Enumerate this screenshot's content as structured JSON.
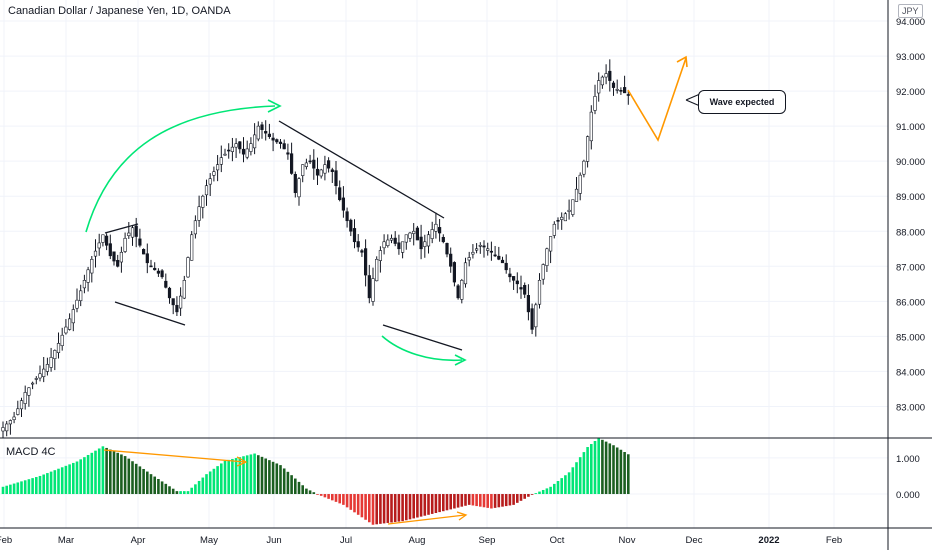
{
  "chart_data": [
    {
      "type": "candlestick",
      "title": "Canadian Dollar / Japanese Yen, 1D, OANDA",
      "currency": "JPY",
      "ylim": [
        82.1,
        94.6
      ],
      "y_ticks": [
        "94.000",
        "93.000",
        "92.000",
        "91.000",
        "90.000",
        "89.000",
        "88.000",
        "87.000",
        "86.000",
        "85.000",
        "84.000",
        "83.000"
      ],
      "x_ticks": [
        "Feb",
        "Mar",
        "Apr",
        "May",
        "Jun",
        "Jul",
        "Aug",
        "Sep",
        "Oct",
        "Nov",
        "Dec",
        "2022",
        "Feb"
      ],
      "anchors": [
        [
          0,
          82.4
        ],
        [
          3,
          82.7
        ],
        [
          6,
          83.4
        ],
        [
          9,
          83.8
        ],
        [
          12,
          84.2
        ],
        [
          15,
          84.8
        ],
        [
          18,
          85.5
        ],
        [
          21,
          86.3
        ],
        [
          24,
          87.2
        ],
        [
          27,
          87.9
        ],
        [
          29,
          87.3
        ],
        [
          31,
          87.0
        ],
        [
          33,
          87.8
        ],
        [
          35,
          88.1
        ],
        [
          37,
          87.6
        ],
        [
          39,
          87.1
        ],
        [
          41,
          86.9
        ],
        [
          43,
          86.7
        ],
        [
          45,
          86.1
        ],
        [
          47,
          85.7
        ],
        [
          49,
          86.6
        ],
        [
          51,
          87.9
        ],
        [
          53,
          88.7
        ],
        [
          55,
          89.3
        ],
        [
          57,
          89.7
        ],
        [
          59,
          90.1
        ],
        [
          61,
          90.3
        ],
        [
          63,
          90.5
        ],
        [
          65,
          90.2
        ],
        [
          67,
          90.5
        ],
        [
          69,
          91.0
        ],
        [
          71,
          90.8
        ],
        [
          73,
          90.6
        ],
        [
          75,
          90.5
        ],
        [
          77,
          90.2
        ],
        [
          79,
          89.1
        ],
        [
          81,
          89.9
        ],
        [
          83,
          90.0
        ],
        [
          85,
          89.6
        ],
        [
          87,
          89.9
        ],
        [
          89,
          89.7
        ],
        [
          91,
          88.9
        ],
        [
          93,
          88.3
        ],
        [
          95,
          87.7
        ],
        [
          97,
          87.4
        ],
        [
          99,
          86.1
        ],
        [
          101,
          87.2
        ],
        [
          103,
          87.7
        ],
        [
          105,
          87.8
        ],
        [
          107,
          87.5
        ],
        [
          109,
          87.9
        ],
        [
          111,
          88.0
        ],
        [
          113,
          87.5
        ],
        [
          115,
          87.9
        ],
        [
          117,
          88.2
        ],
        [
          119,
          87.7
        ],
        [
          121,
          87.0
        ],
        [
          123,
          86.1
        ],
        [
          125,
          87.1
        ],
        [
          127,
          87.4
        ],
        [
          129,
          87.6
        ],
        [
          131,
          87.5
        ],
        [
          133,
          87.3
        ],
        [
          135,
          87.1
        ],
        [
          137,
          86.7
        ],
        [
          139,
          86.5
        ],
        [
          141,
          86.2
        ],
        [
          143,
          85.2
        ],
        [
          145,
          86.6
        ],
        [
          147,
          87.5
        ],
        [
          149,
          88.2
        ],
        [
          151,
          88.4
        ],
        [
          153,
          88.6
        ],
        [
          155,
          89.2
        ],
        [
          157,
          90.0
        ],
        [
          159,
          91.4
        ],
        [
          161,
          92.3
        ],
        [
          163,
          92.5
        ],
        [
          165,
          92.1
        ],
        [
          167,
          92.0
        ],
        [
          169,
          91.9
        ]
      ],
      "annotations": [
        {
          "type": "callout",
          "text": "Wave expected"
        }
      ]
    },
    {
      "type": "bar",
      "title": "MACD 4C",
      "ylim": [
        -0.94,
        1.55
      ],
      "y_ticks": [
        "1.000",
        "0.000"
      ],
      "anchors": [
        [
          0,
          0.2
        ],
        [
          10,
          0.5
        ],
        [
          20,
          0.9
        ],
        [
          27,
          1.32
        ],
        [
          33,
          1.05
        ],
        [
          40,
          0.55
        ],
        [
          47,
          0.08
        ],
        [
          50,
          0.08
        ],
        [
          55,
          0.55
        ],
        [
          60,
          0.92
        ],
        [
          68,
          1.12
        ],
        [
          75,
          0.8
        ],
        [
          82,
          0.15
        ],
        [
          86,
          -0.05
        ],
        [
          92,
          -0.3
        ],
        [
          100,
          -0.85
        ],
        [
          108,
          -0.75
        ],
        [
          114,
          -0.6
        ],
        [
          120,
          -0.45
        ],
        [
          126,
          -0.3
        ],
        [
          132,
          -0.4
        ],
        [
          138,
          -0.3
        ],
        [
          143,
          -0.02
        ],
        [
          148,
          0.2
        ],
        [
          153,
          0.6
        ],
        [
          158,
          1.3
        ],
        [
          161,
          1.55
        ],
        [
          165,
          1.35
        ],
        [
          169,
          1.1
        ]
      ]
    }
  ]
}
